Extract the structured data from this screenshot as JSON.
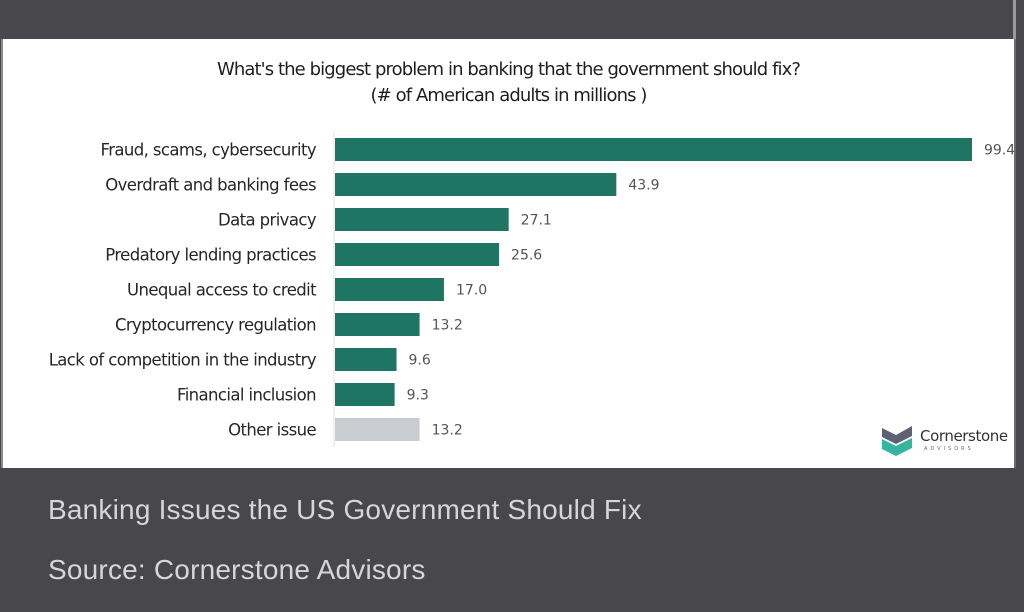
{
  "chart_data": {
    "type": "bar",
    "orientation": "horizontal",
    "title": "What's the biggest problem in banking that the government should fix?",
    "subtitle": "(# of American adults in millions )",
    "xlabel": "",
    "ylabel": "",
    "xlim": [
      0,
      100
    ],
    "grid": false,
    "categories": [
      "Fraud, scams, cybersecurity",
      "Overdraft and banking fees",
      "Data privacy",
      "Predatory lending practices",
      "Unequal access to credit",
      "Cryptocurrency regulation",
      "Lack of competition in the industry",
      "Financial inclusion",
      "Other issue"
    ],
    "values": [
      99.4,
      43.9,
      27.1,
      25.6,
      17.0,
      13.2,
      9.6,
      9.3,
      13.2
    ],
    "value_labels": [
      "99.4",
      "43.9",
      "27.1",
      "25.6",
      "17.0",
      "13.2",
      "9.6",
      "9.3",
      "13.2"
    ],
    "colors": [
      "#1f7563",
      "#1f7563",
      "#1f7563",
      "#1f7563",
      "#1f7563",
      "#1f7563",
      "#1f7563",
      "#1f7563",
      "#c9ccd0"
    ]
  },
  "logo": {
    "name": "Cornerstone",
    "sub": "ADVISORS",
    "colors": {
      "top": "#5c6272",
      "bottom": "#35b5a0"
    }
  },
  "caption": {
    "title": "Banking Issues the US Government Should Fix",
    "source": "Source: Cornerstone Advisors"
  }
}
